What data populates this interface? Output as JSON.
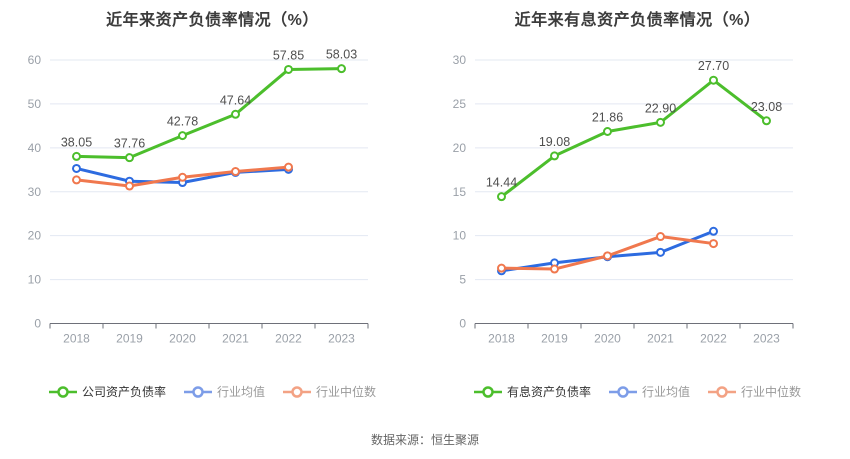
{
  "page": {
    "source_note": "数据来源：恒生聚源"
  },
  "palette": {
    "grid_color": "#e3e8f2",
    "axis_color": "#6e7079",
    "tick_label_color": "#9aa0a8",
    "data_label_color": "#4f4f4f",
    "title_color": "#3c3c3c",
    "legend_active_text": "#333333",
    "legend_muted_text": "#999999"
  },
  "chart_data": [
    {
      "type": "line",
      "title": "近年来资产负债率情况（%）",
      "categories": [
        "2018",
        "2019",
        "2020",
        "2021",
        "2022",
        "2023"
      ],
      "ylim": [
        0,
        60
      ],
      "ytick_step": 10,
      "grid": true,
      "legend_position": "bottom",
      "series": [
        {
          "name": "公司资产负债率",
          "color": "#4cbe2c",
          "legend_icon_color": "#4cbe2c",
          "legend_text_muted": false,
          "values": [
            38.05,
            37.76,
            42.78,
            47.64,
            57.85,
            58.03
          ],
          "labels": [
            "38.05",
            "37.76",
            "42.78",
            "47.64",
            "57.85",
            "58.03"
          ]
        },
        {
          "name": "行业均值",
          "color": "#2d6be0",
          "legend_icon_color": "#7d9de8",
          "legend_text_muted": true,
          "values": [
            35.3,
            32.4,
            32.1,
            34.4,
            35.1,
            null
          ],
          "labels": null
        },
        {
          "name": "行业中位数",
          "color": "#f0784e",
          "legend_icon_color": "#f3a284",
          "legend_text_muted": true,
          "values": [
            32.7,
            31.3,
            33.3,
            34.6,
            35.6,
            null
          ],
          "labels": null
        }
      ]
    },
    {
      "type": "line",
      "title": "近年来有息资产负债率情况（%）",
      "categories": [
        "2018",
        "2019",
        "2020",
        "2021",
        "2022",
        "2023"
      ],
      "ylim": [
        0,
        30
      ],
      "ytick_step": 5,
      "grid": true,
      "legend_position": "bottom",
      "series": [
        {
          "name": "有息资产负债率",
          "color": "#4cbe2c",
          "legend_icon_color": "#4cbe2c",
          "legend_text_muted": false,
          "values": [
            14.44,
            19.08,
            21.86,
            22.9,
            27.7,
            23.08
          ],
          "labels": [
            "14.44",
            "19.08",
            "21.86",
            "22.90",
            "27.70",
            "23.08"
          ]
        },
        {
          "name": "行业均值",
          "color": "#2d6be0",
          "legend_icon_color": "#7d9de8",
          "legend_text_muted": true,
          "values": [
            6.0,
            6.9,
            7.6,
            8.1,
            10.5,
            null
          ],
          "labels": null
        },
        {
          "name": "行业中位数",
          "color": "#f0784e",
          "legend_icon_color": "#f3a284",
          "legend_text_muted": true,
          "values": [
            6.3,
            6.2,
            7.7,
            9.9,
            9.1,
            null
          ],
          "labels": null
        }
      ]
    }
  ]
}
